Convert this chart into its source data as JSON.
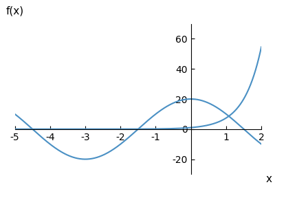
{
  "xlim": [
    -5,
    2
  ],
  "ylim": [
    -30,
    70
  ],
  "xlabel": "x",
  "ylabel": "f(x)",
  "line_color": "#4a90c4",
  "line_width": 1.5,
  "xticks": [
    -5,
    -4,
    -3,
    -2,
    -1,
    1,
    2
  ],
  "yticks": [
    -20,
    0,
    20,
    40,
    60
  ],
  "figsize": [
    4.32,
    2.88
  ],
  "dpi": 100
}
